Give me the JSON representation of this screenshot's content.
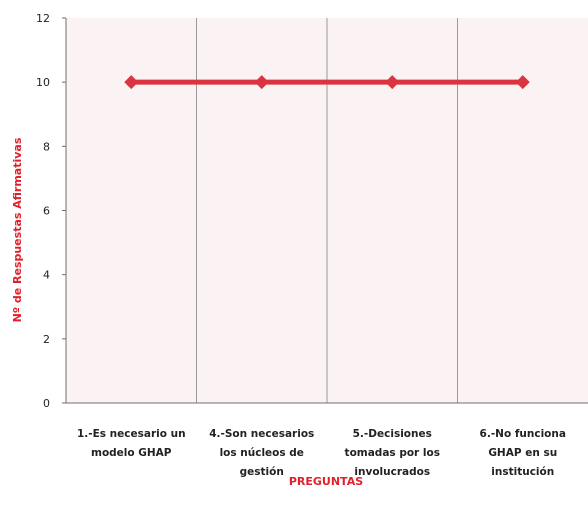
{
  "chart_data": {
    "type": "line",
    "title": "",
    "xlabel": "PREGUNTAS",
    "ylabel": "Nº de Respuestas Afirmativas",
    "ylim": [
      0,
      12
    ],
    "yticks": [
      "0",
      "2",
      "4",
      "6",
      "8",
      "10",
      "12"
    ],
    "categories": [
      [
        "1.-Es necesario un",
        "modelo GHAP"
      ],
      [
        "4.-Son necesarios",
        "los núcleos de",
        "gestión"
      ],
      [
        "5.-Decisiones",
        "tomadas por los",
        "involucrados"
      ],
      [
        "6.-No funciona",
        "GHAP en su",
        "institución"
      ]
    ],
    "series": [
      {
        "values": [
          10,
          10,
          10,
          10
        ],
        "color": "#d9343f"
      }
    ],
    "grid": "vertical",
    "legend": "none",
    "colors": {
      "series": "#d9343f",
      "axis_title": "#e0202a",
      "plot_background": "#fbf3f3",
      "gridline": "#9a9a9a",
      "axis_text": "#222222"
    }
  }
}
